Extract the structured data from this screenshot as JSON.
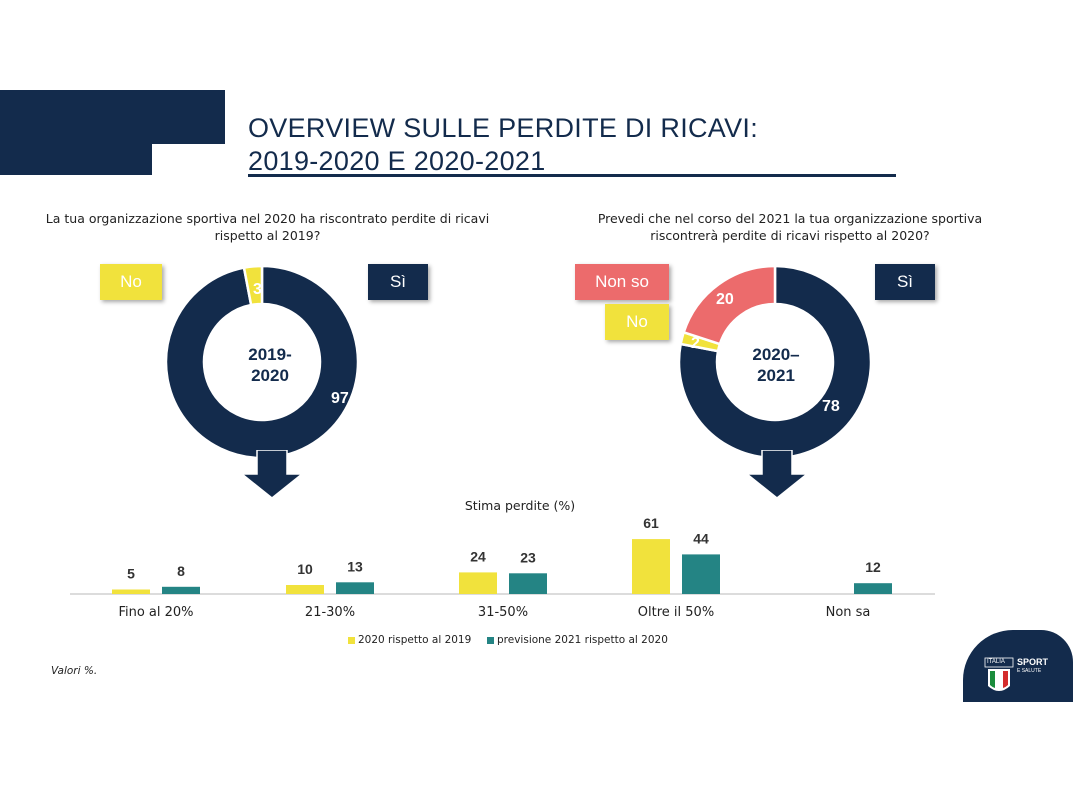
{
  "title": {
    "line1": "OVERVIEW SULLE PERDITE DI RICAVI:",
    "line2": "2019-2020 E 2020-2021"
  },
  "colors": {
    "navy": "#132b4c",
    "yellow": "#f1e23c",
    "teal": "#248484",
    "coral": "#ec6b6c"
  },
  "donut1": {
    "question": "La tua organizzazione sportiva nel 2020 ha riscontrato perdite di ricavi rispetto al 2019?",
    "center": [
      "2019-",
      "2020"
    ],
    "tags": {
      "no": "No",
      "si": "Sì"
    },
    "slice_labels": {
      "no": "3",
      "si": "97"
    }
  },
  "donut2": {
    "question": "Prevedi che nel corso del 2021 la tua organizzazione sportiva riscontrerà perdite di ricavi rispetto al 2020?",
    "center": [
      "2020–",
      "2021"
    ],
    "tags": {
      "nonso": "Non so",
      "no": "No",
      "si": "Sì"
    },
    "slice_labels": {
      "nonso": "20",
      "no": "2",
      "si": "78"
    }
  },
  "chart_data": [
    {
      "type": "pie",
      "categories": [
        "Sì",
        "No"
      ],
      "values": [
        97,
        3
      ],
      "colors": [
        "#132b4c",
        "#f1e23c"
      ],
      "center_text": "2019-2020"
    },
    {
      "type": "pie",
      "categories": [
        "Sì",
        "No",
        "Non so"
      ],
      "values": [
        78,
        2,
        20
      ],
      "colors": [
        "#132b4c",
        "#f1e23c",
        "#ec6b6c"
      ],
      "center_text": "2020–2021"
    },
    {
      "type": "bar",
      "title": "Stima perdite (%)",
      "categories": [
        "Fino al 20%",
        "21-30%",
        "31-50%",
        "Oltre il 50%",
        "Non sa"
      ],
      "series": [
        {
          "name": "2020 rispetto al 2019",
          "values": [
            5,
            10,
            24,
            61,
            null
          ],
          "color": "#f1e23c"
        },
        {
          "name": "previsione 2021 rispetto al 2020",
          "values": [
            8,
            13,
            23,
            44,
            12
          ],
          "color": "#248484"
        }
      ],
      "legend": "bottom"
    }
  ],
  "footnote": "Valori %.",
  "logo": {
    "italia": "ITALIA",
    "sport": "SPORT",
    "salute": "E SALUTE"
  }
}
